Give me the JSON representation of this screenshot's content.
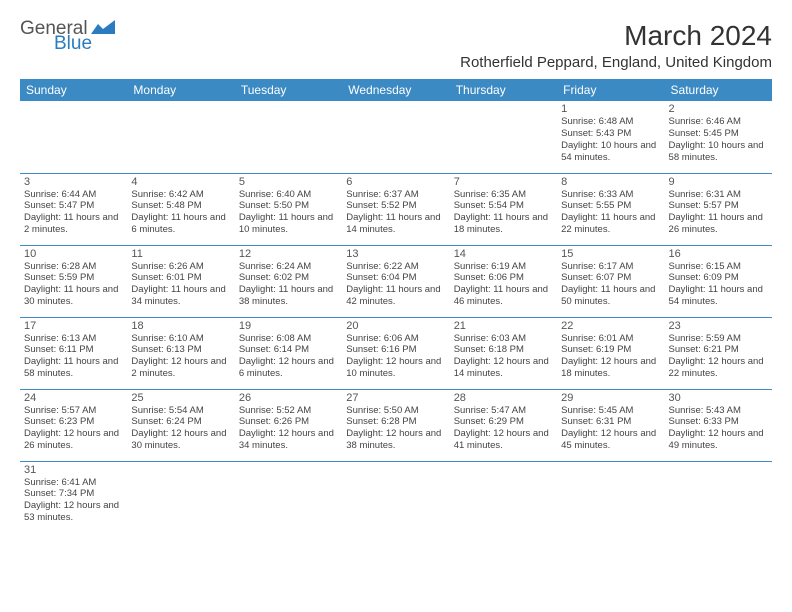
{
  "logo": {
    "general": "General",
    "blue": "Blue"
  },
  "title": {
    "month": "March 2024",
    "location": "Rotherfield Peppard, England, United Kingdom"
  },
  "headers": [
    "Sunday",
    "Monday",
    "Tuesday",
    "Wednesday",
    "Thursday",
    "Friday",
    "Saturday"
  ],
  "colors": {
    "header_bg": "#3b8ac4",
    "header_text": "#ffffff",
    "logo_blue": "#2b7bbf",
    "border": "#3b8ac4"
  },
  "weeks": [
    [
      null,
      null,
      null,
      null,
      null,
      {
        "n": "1",
        "sr": "6:48 AM",
        "ss": "5:43 PM",
        "dl": "10 hours and 54 minutes."
      },
      {
        "n": "2",
        "sr": "6:46 AM",
        "ss": "5:45 PM",
        "dl": "10 hours and 58 minutes."
      }
    ],
    [
      {
        "n": "3",
        "sr": "6:44 AM",
        "ss": "5:47 PM",
        "dl": "11 hours and 2 minutes."
      },
      {
        "n": "4",
        "sr": "6:42 AM",
        "ss": "5:48 PM",
        "dl": "11 hours and 6 minutes."
      },
      {
        "n": "5",
        "sr": "6:40 AM",
        "ss": "5:50 PM",
        "dl": "11 hours and 10 minutes."
      },
      {
        "n": "6",
        "sr": "6:37 AM",
        "ss": "5:52 PM",
        "dl": "11 hours and 14 minutes."
      },
      {
        "n": "7",
        "sr": "6:35 AM",
        "ss": "5:54 PM",
        "dl": "11 hours and 18 minutes."
      },
      {
        "n": "8",
        "sr": "6:33 AM",
        "ss": "5:55 PM",
        "dl": "11 hours and 22 minutes."
      },
      {
        "n": "9",
        "sr": "6:31 AM",
        "ss": "5:57 PM",
        "dl": "11 hours and 26 minutes."
      }
    ],
    [
      {
        "n": "10",
        "sr": "6:28 AM",
        "ss": "5:59 PM",
        "dl": "11 hours and 30 minutes."
      },
      {
        "n": "11",
        "sr": "6:26 AM",
        "ss": "6:01 PM",
        "dl": "11 hours and 34 minutes."
      },
      {
        "n": "12",
        "sr": "6:24 AM",
        "ss": "6:02 PM",
        "dl": "11 hours and 38 minutes."
      },
      {
        "n": "13",
        "sr": "6:22 AM",
        "ss": "6:04 PM",
        "dl": "11 hours and 42 minutes."
      },
      {
        "n": "14",
        "sr": "6:19 AM",
        "ss": "6:06 PM",
        "dl": "11 hours and 46 minutes."
      },
      {
        "n": "15",
        "sr": "6:17 AM",
        "ss": "6:07 PM",
        "dl": "11 hours and 50 minutes."
      },
      {
        "n": "16",
        "sr": "6:15 AM",
        "ss": "6:09 PM",
        "dl": "11 hours and 54 minutes."
      }
    ],
    [
      {
        "n": "17",
        "sr": "6:13 AM",
        "ss": "6:11 PM",
        "dl": "11 hours and 58 minutes."
      },
      {
        "n": "18",
        "sr": "6:10 AM",
        "ss": "6:13 PM",
        "dl": "12 hours and 2 minutes."
      },
      {
        "n": "19",
        "sr": "6:08 AM",
        "ss": "6:14 PM",
        "dl": "12 hours and 6 minutes."
      },
      {
        "n": "20",
        "sr": "6:06 AM",
        "ss": "6:16 PM",
        "dl": "12 hours and 10 minutes."
      },
      {
        "n": "21",
        "sr": "6:03 AM",
        "ss": "6:18 PM",
        "dl": "12 hours and 14 minutes."
      },
      {
        "n": "22",
        "sr": "6:01 AM",
        "ss": "6:19 PM",
        "dl": "12 hours and 18 minutes."
      },
      {
        "n": "23",
        "sr": "5:59 AM",
        "ss": "6:21 PM",
        "dl": "12 hours and 22 minutes."
      }
    ],
    [
      {
        "n": "24",
        "sr": "5:57 AM",
        "ss": "6:23 PM",
        "dl": "12 hours and 26 minutes."
      },
      {
        "n": "25",
        "sr": "5:54 AM",
        "ss": "6:24 PM",
        "dl": "12 hours and 30 minutes."
      },
      {
        "n": "26",
        "sr": "5:52 AM",
        "ss": "6:26 PM",
        "dl": "12 hours and 34 minutes."
      },
      {
        "n": "27",
        "sr": "5:50 AM",
        "ss": "6:28 PM",
        "dl": "12 hours and 38 minutes."
      },
      {
        "n": "28",
        "sr": "5:47 AM",
        "ss": "6:29 PM",
        "dl": "12 hours and 41 minutes."
      },
      {
        "n": "29",
        "sr": "5:45 AM",
        "ss": "6:31 PM",
        "dl": "12 hours and 45 minutes."
      },
      {
        "n": "30",
        "sr": "5:43 AM",
        "ss": "6:33 PM",
        "dl": "12 hours and 49 minutes."
      }
    ],
    [
      {
        "n": "31",
        "sr": "6:41 AM",
        "ss": "7:34 PM",
        "dl": "12 hours and 53 minutes."
      },
      null,
      null,
      null,
      null,
      null,
      null
    ]
  ],
  "labels": {
    "sunrise": "Sunrise:",
    "sunset": "Sunset:",
    "daylight": "Daylight:"
  }
}
